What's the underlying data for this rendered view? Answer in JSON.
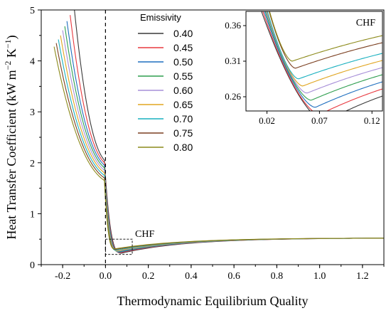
{
  "chart_data": [
    {
      "type": "line",
      "xlabel": "Thermodynamic Equilibrium Quality",
      "ylabel_parts": [
        "Heat Transfer Coefficient (kW m",
        "−2",
        " K",
        "−1",
        ")"
      ],
      "xlim": [
        -0.3,
        1.3
      ],
      "ylim": [
        0,
        5
      ],
      "xticks": [
        -0.2,
        0.0,
        0.2,
        0.4,
        0.6,
        0.8,
        1.0,
        1.2
      ],
      "xtick_labels": [
        "-0.2",
        "0.0",
        "0.2",
        "0.4",
        "0.6",
        "0.8",
        "1.0",
        "1.2"
      ],
      "yticks": [
        0,
        1,
        2,
        3,
        4,
        5
      ],
      "ytick_labels": [
        "0",
        "1",
        "2",
        "3",
        "4",
        "5"
      ],
      "vline_x": 0.0,
      "annotation": {
        "text": "CHF",
        "box": {
          "x": [
            0.0,
            0.125
          ],
          "y": [
            0.2,
            0.5
          ]
        }
      },
      "legend_title": "Emissivity",
      "legend_position": "upper-center",
      "series": [
        {
          "name": "0.40",
          "color": "#3a3a3a",
          "x_start": -0.145,
          "y_start": 5.0,
          "y_mid": 2.4,
          "h_min": 0.225,
          "x_min": 0.075,
          "x_end": 1.3,
          "y_end": 0.52
        },
        {
          "name": "0.45",
          "color": "#e8393f",
          "x_start": -0.165,
          "y_start": 4.9,
          "y_mid": 2.35,
          "h_min": 0.235,
          "x_min": 0.07,
          "x_end": 1.3,
          "y_end": 0.52
        },
        {
          "name": "0.50",
          "color": "#1f6fbf",
          "x_start": -0.18,
          "y_start": 4.78,
          "y_mid": 2.3,
          "h_min": 0.245,
          "x_min": 0.066,
          "x_end": 1.3,
          "y_end": 0.52
        },
        {
          "name": "0.55",
          "color": "#2e9e4f",
          "x_start": -0.19,
          "y_start": 4.68,
          "y_mid": 2.25,
          "h_min": 0.255,
          "x_min": 0.062,
          "x_end": 1.3,
          "y_end": 0.52
        },
        {
          "name": "0.60",
          "color": "#a78fd8",
          "x_start": -0.2,
          "y_start": 4.6,
          "y_mid": 2.2,
          "h_min": 0.265,
          "x_min": 0.058,
          "x_end": 1.3,
          "y_end": 0.52
        },
        {
          "name": "0.65",
          "color": "#e0a520",
          "x_start": -0.21,
          "y_start": 4.5,
          "y_mid": 2.15,
          "h_min": 0.275,
          "x_min": 0.054,
          "x_end": 1.3,
          "y_end": 0.52
        },
        {
          "name": "0.70",
          "color": "#19b0bf",
          "x_start": -0.22,
          "y_start": 4.42,
          "y_mid": 2.1,
          "h_min": 0.285,
          "x_min": 0.05,
          "x_end": 1.3,
          "y_end": 0.52
        },
        {
          "name": "0.75",
          "color": "#7b3f20",
          "x_start": -0.23,
          "y_start": 4.35,
          "y_mid": 2.05,
          "h_min": 0.3,
          "x_min": 0.047,
          "x_end": 1.3,
          "y_end": 0.52
        },
        {
          "name": "0.80",
          "color": "#8c8a1a",
          "x_start": -0.24,
          "y_start": 4.28,
          "y_mid": 2.0,
          "h_min": 0.31,
          "x_min": 0.044,
          "x_end": 1.3,
          "y_end": 0.52
        }
      ]
    },
    {
      "type": "line",
      "role": "inset",
      "title": "CHF",
      "xlim": [
        0.0,
        0.13
      ],
      "ylim": [
        0.24,
        0.38
      ],
      "xticks": [
        0.02,
        0.07,
        0.12
      ],
      "xtick_labels": [
        "0.02",
        "0.07",
        "0.12"
      ],
      "yticks": [
        0.26,
        0.31,
        0.36
      ],
      "ytick_labels": [
        "0.26",
        "0.31",
        "0.36"
      ],
      "series_ref": "same as main chart"
    }
  ]
}
